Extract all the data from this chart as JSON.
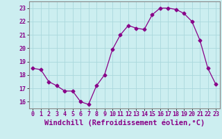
{
  "x": [
    0,
    1,
    2,
    3,
    4,
    5,
    6,
    7,
    8,
    9,
    10,
    11,
    12,
    13,
    14,
    15,
    16,
    17,
    18,
    19,
    20,
    21,
    22,
    23
  ],
  "y": [
    18.5,
    18.4,
    17.5,
    17.2,
    16.8,
    16.8,
    16.0,
    15.8,
    17.2,
    18.0,
    19.9,
    21.0,
    21.7,
    21.5,
    21.4,
    22.5,
    23.0,
    23.0,
    22.9,
    22.6,
    22.0,
    20.6,
    18.5,
    17.3
  ],
  "line_color": "#880088",
  "marker": "D",
  "marker_size": 2.5,
  "background_color": "#cceef0",
  "grid_color": "#aad8dc",
  "xlabel": "Windchill (Refroidissement éolien,°C)",
  "ylim": [
    15.5,
    23.5
  ],
  "xlim": [
    -0.5,
    23.5
  ],
  "yticks": [
    16,
    17,
    18,
    19,
    20,
    21,
    22,
    23
  ],
  "xticks": [
    0,
    1,
    2,
    3,
    4,
    5,
    6,
    7,
    8,
    9,
    10,
    11,
    12,
    13,
    14,
    15,
    16,
    17,
    18,
    19,
    20,
    21,
    22,
    23
  ],
  "tick_color": "#880088",
  "label_color": "#880088",
  "spine_color": "#888888",
  "xlabel_fontsize": 7.5,
  "tick_fontsize": 6.0
}
